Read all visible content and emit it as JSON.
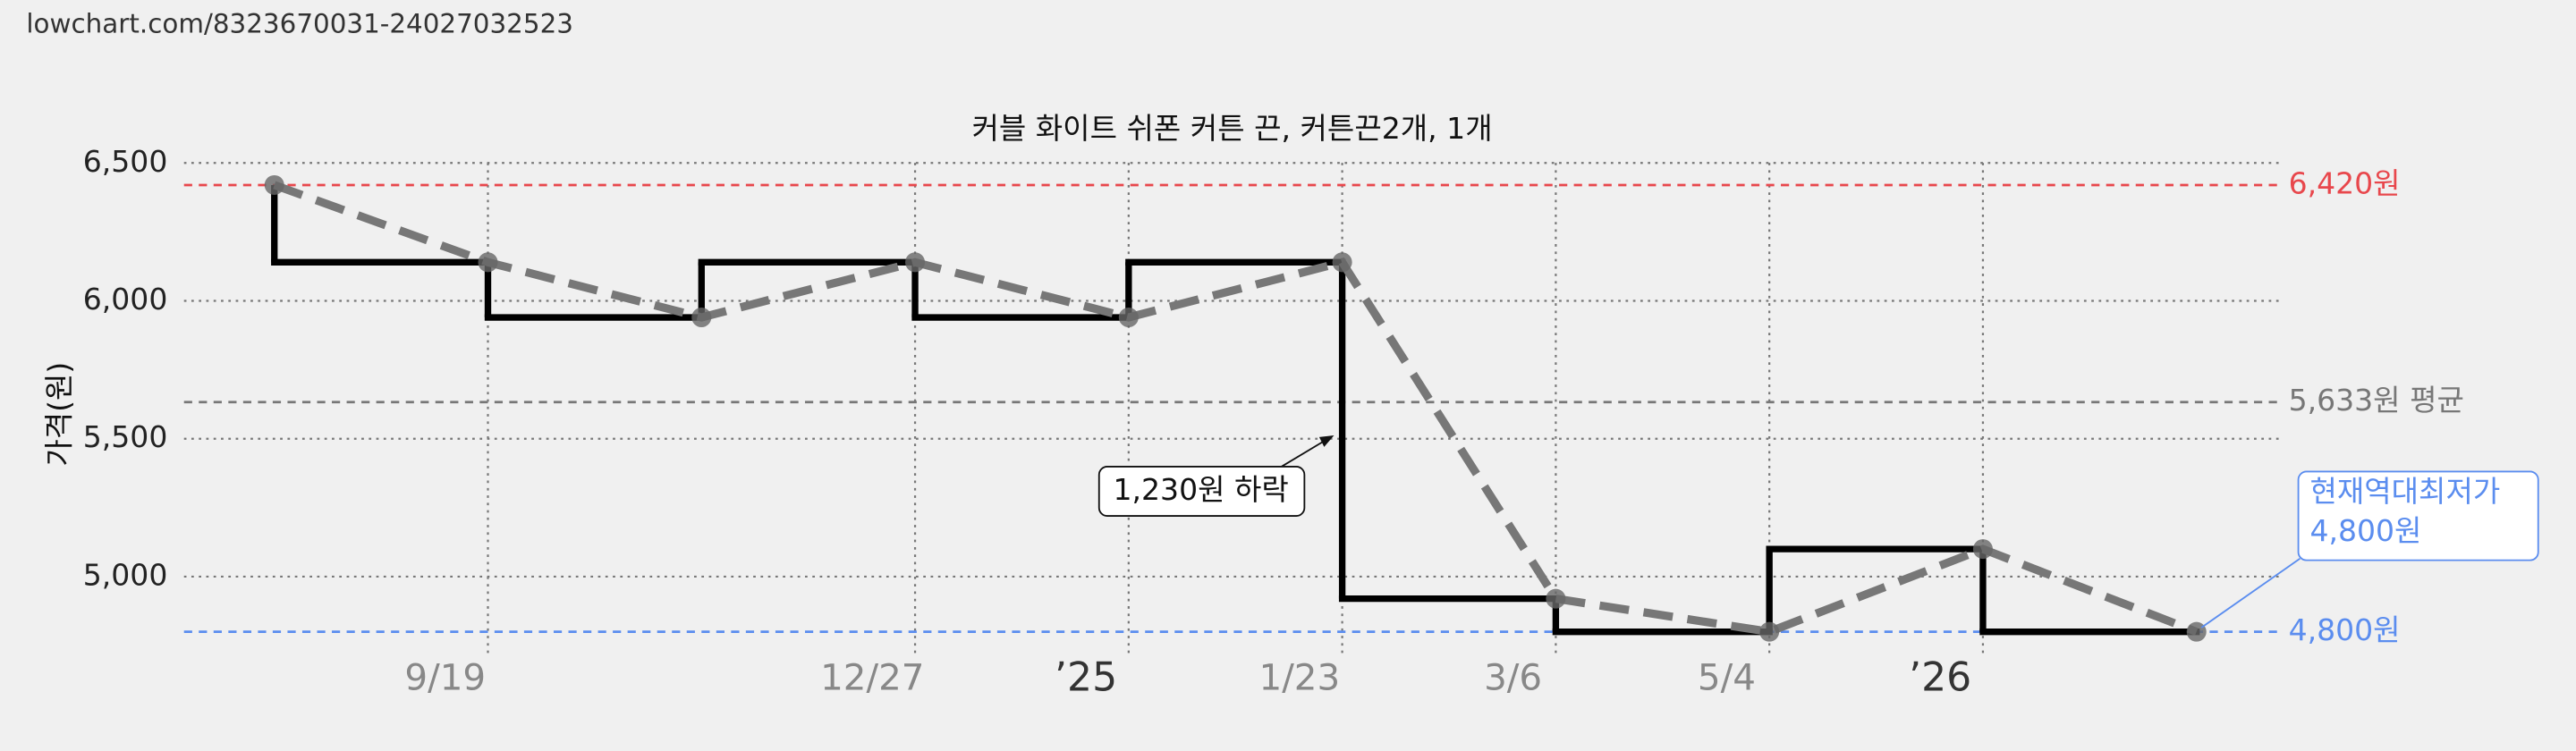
{
  "url": "lowchart.com/8323670031-24027032523",
  "chart_data": {
    "type": "line",
    "title": "커블 화이트 쉬폰 커튼 끈, 커튼끈2개, 1개",
    "y_label": "가격(원)",
    "categories": [
      null,
      "9/19",
      null,
      "12/27",
      "’25",
      "1/23",
      "3/6",
      "5/4",
      "’26",
      null
    ],
    "series": [
      {
        "color": "#000000",
        "values": [
          6420,
          6140,
          5940,
          6140,
          5940,
          6140,
          4920,
          4800,
          5100,
          4800
        ]
      }
    ],
    "ylim": [
      4720,
      6560
    ],
    "yticks": [
      {
        "value": 5000,
        "label": "5,000"
      },
      {
        "value": 5500,
        "label": "5,500"
      },
      {
        "value": 6000,
        "label": "6,000"
      },
      {
        "value": 6500,
        "label": "6,500"
      }
    ],
    "grid": true,
    "reference_lines": [
      {
        "value": 6420,
        "label": "6,420원",
        "color": "#e8474c"
      },
      {
        "value": 5633,
        "label": "5,633원 평균",
        "color": "#777777"
      },
      {
        "value": 4800,
        "label": "4,800원",
        "color": "#5b8def"
      }
    ],
    "annotations": [
      {
        "text": "1,230원 하락"
      },
      {
        "lines": [
          "현재역대최저가",
          "4,800원"
        ]
      }
    ]
  }
}
